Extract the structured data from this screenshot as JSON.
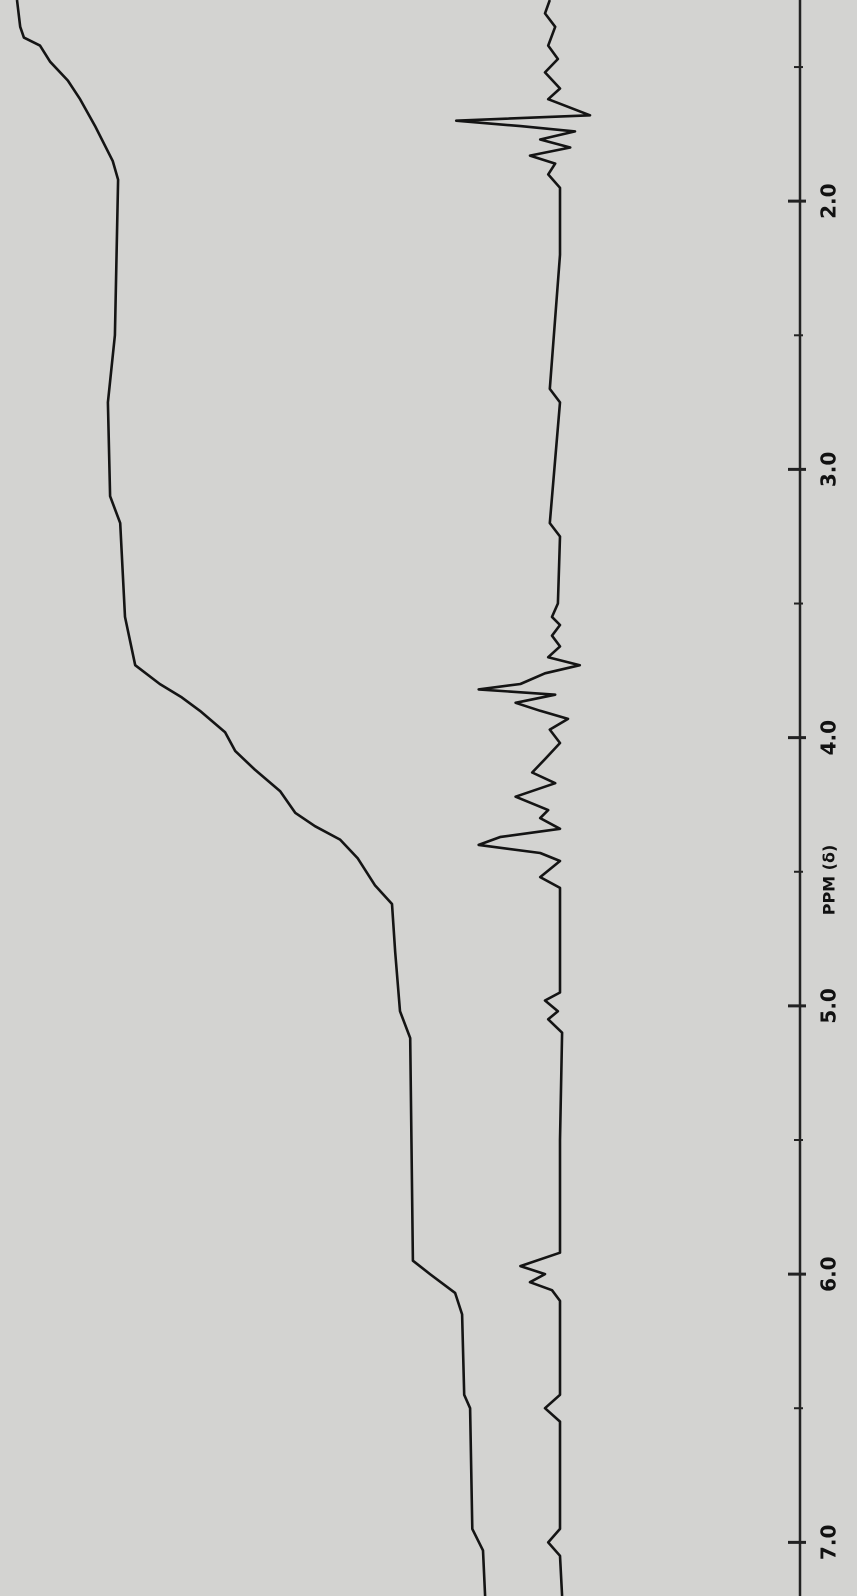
{
  "chart_data": {
    "type": "line",
    "x_label": "PPM (δ)",
    "xlim": [
      1.25,
      7.2
    ],
    "xticks": [
      {
        "value": 2,
        "label": "2.0"
      },
      {
        "value": 3,
        "label": "3.0"
      },
      {
        "value": 4,
        "label": "4.0"
      },
      {
        "value": 5,
        "label": "5.0"
      },
      {
        "value": 6,
        "label": "6.0"
      },
      {
        "value": 7,
        "label": "7.0"
      }
    ],
    "xminorticks": [
      1.5,
      2.5,
      3.5,
      4.5,
      5.5,
      6.5
    ],
    "ylim": [
      -10,
      102
    ],
    "series": [
      {
        "color": "#141414",
        "x": [
          1.25,
          1.3,
          1.35,
          1.42,
          1.47,
          1.52,
          1.58,
          1.62,
          1.68,
          1.7,
          1.72,
          1.74,
          1.77,
          1.8,
          1.83,
          1.86,
          1.9,
          1.95,
          2.2,
          2.7,
          2.75,
          3.2,
          3.25,
          3.5,
          3.55,
          3.58,
          3.62,
          3.66,
          3.7,
          3.73,
          3.76,
          3.8,
          3.82,
          3.84,
          3.87,
          3.9,
          3.93,
          3.97,
          4.02,
          4.08,
          4.13,
          4.17,
          4.22,
          4.27,
          4.3,
          4.34,
          4.37,
          4.4,
          4.43,
          4.46,
          4.52,
          4.56,
          4.6,
          4.95,
          4.98,
          5.02,
          5.05,
          5.1,
          5.5,
          5.92,
          5.97,
          6.0,
          6.03,
          6.06,
          6.1,
          6.45,
          6.5,
          6.55,
          6.95,
          7.0,
          7.05,
          7.2
        ],
        "values": [
          1.9,
          2.8,
          0.9,
          2.2,
          0.4,
          2.8,
          0,
          2.2,
          -5.6,
          19.4,
          7.4,
          -2.8,
          3.7,
          -1.9,
          5.6,
          0.9,
          2.2,
          0,
          0,
          1.9,
          0,
          1.9,
          0,
          0.4,
          1.5,
          0,
          1.5,
          0,
          2.2,
          -3.7,
          2.8,
          7.4,
          15.2,
          0.9,
          8.3,
          3.7,
          -1.5,
          1.9,
          0,
          2.8,
          5.2,
          0.9,
          8.3,
          2.2,
          3.7,
          0,
          11.1,
          15.2,
          3.7,
          0,
          3.7,
          0,
          0,
          0,
          2.8,
          0.4,
          2.2,
          -0.4,
          0,
          0,
          7.4,
          2.8,
          5.6,
          1.5,
          0,
          0,
          2.8,
          0,
          0,
          2.2,
          0,
          -0.4
        ]
      },
      {
        "color": "#141414",
        "x": [
          1.25,
          1.35,
          1.39,
          1.42,
          1.48,
          1.55,
          1.62,
          1.72,
          1.85,
          1.92,
          2.5,
          2.75,
          3.1,
          3.2,
          3.55,
          3.73,
          3.8,
          3.85,
          3.9,
          3.98,
          4.05,
          4.12,
          4.2,
          4.28,
          4.33,
          4.38,
          4.45,
          4.55,
          4.62,
          4.8,
          5.02,
          5.12,
          5.95,
          6.0,
          6.07,
          6.15,
          6.45,
          6.5,
          6.95,
          7.03,
          7.2
        ],
        "values": [
          101.5,
          100.9,
          100.2,
          97.2,
          95.3,
          92,
          89.7,
          86.9,
          83.6,
          82.6,
          83.2,
          84.5,
          84.1,
          82.2,
          81.3,
          79.4,
          74.8,
          70.7,
          67.3,
          62.6,
          60.7,
          57,
          52.3,
          49.5,
          45.8,
          41.1,
          37.8,
          34.6,
          31.4,
          30.8,
          29.9,
          28,
          27.5,
          24.3,
          19.6,
          18.3,
          17.9,
          16.8,
          16.4,
          14.4,
          14
        ]
      }
    ]
  }
}
